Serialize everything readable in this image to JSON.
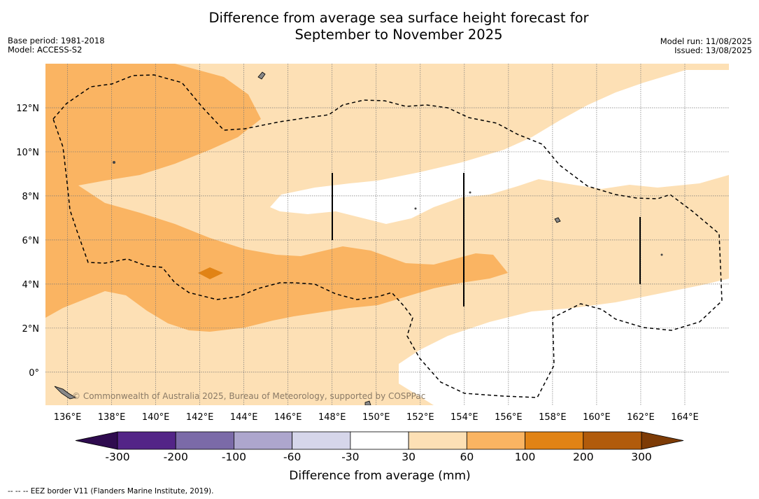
{
  "title_line1": "Difference from average sea surface height forecast for",
  "title_line2": "September to November 2025",
  "base_period": "Base period: 1981-2018",
  "model": "Model: ACCESS-S2",
  "model_run": "Model run: 11/08/2025",
  "issued": "Issued: 13/08/2025",
  "credit": "© Commonwealth of Australia 2025, Bureau of Meteorology, supported by COSPPac",
  "footer": "--  --  -- EEZ border V11 (Flanders Marine Institute, 2019).",
  "map": {
    "lon_range": [
      135,
      166
    ],
    "lat_range": [
      -1.5,
      14
    ],
    "lon_ticks": [
      "136°E",
      "138°E",
      "140°E",
      "142°E",
      "144°E",
      "146°E",
      "148°E",
      "150°E",
      "152°E",
      "154°E",
      "156°E",
      "158°E",
      "160°E",
      "162°E",
      "164°E"
    ],
    "lat_ticks": [
      "0°",
      "2°N",
      "4°N",
      "6°N",
      "8°N",
      "10°N",
      "12°N"
    ]
  },
  "colorbar": {
    "label": "Difference from average (mm)",
    "ticks": [
      "-300",
      "-200",
      "-100",
      "-60",
      "-30",
      "30",
      "60",
      "100",
      "200",
      "300"
    ],
    "colors": [
      "#2f0b4f",
      "#532487",
      "#7b6aa8",
      "#ada6cd",
      "#d6d6ea",
      "#ffffff",
      "#fde0b5",
      "#fab462",
      "#e18315",
      "#b15b0b",
      "#7d3b06"
    ]
  },
  "colors": {
    "band_30_60": "#fde0b5",
    "band_60_100": "#fab462",
    "band_100_200": "#e18315"
  }
}
